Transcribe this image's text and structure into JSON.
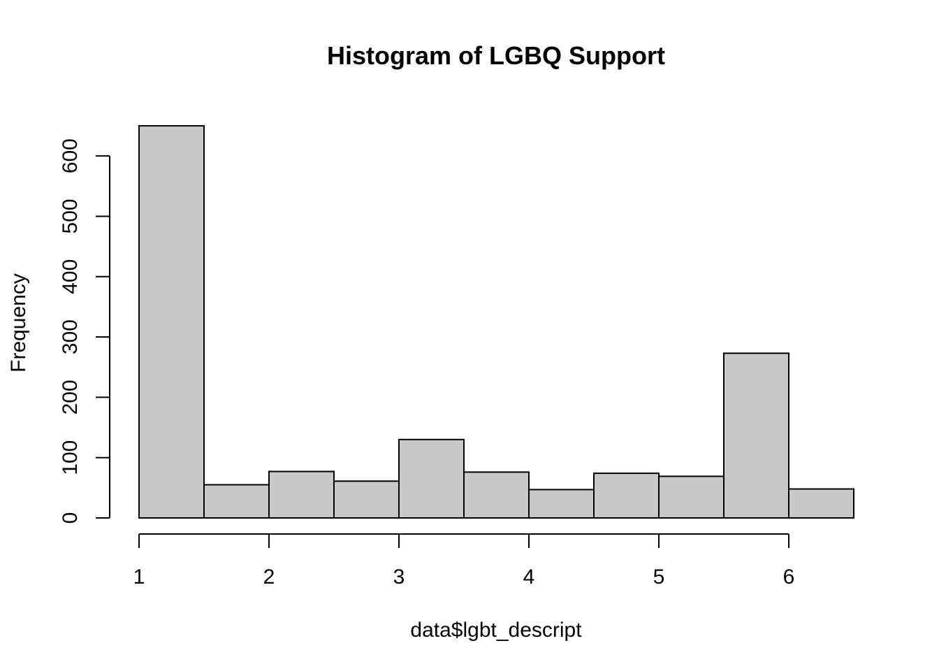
{
  "chart_data": {
    "type": "bar",
    "title": "Histogram of LGBQ Support",
    "xlabel": "data$lgbt_descript",
    "ylabel": "Frequency",
    "bin_edges": [
      1,
      1.5,
      2,
      2.5,
      3,
      3.5,
      4,
      4.5,
      5,
      5.5,
      6,
      6.5
    ],
    "values": [
      650,
      55,
      77,
      61,
      130,
      76,
      47,
      74,
      69,
      273,
      48
    ],
    "xlim": [
      1,
      6.5
    ],
    "ylim": [
      0,
      650
    ],
    "x_ticks": [
      "1",
      "2",
      "3",
      "4",
      "5",
      "6"
    ],
    "y_ticks": [
      "0",
      "100",
      "200",
      "300",
      "400",
      "500",
      "600"
    ],
    "bar_color": "#c8c8c8",
    "border_color": "#000000",
    "grid": false
  }
}
